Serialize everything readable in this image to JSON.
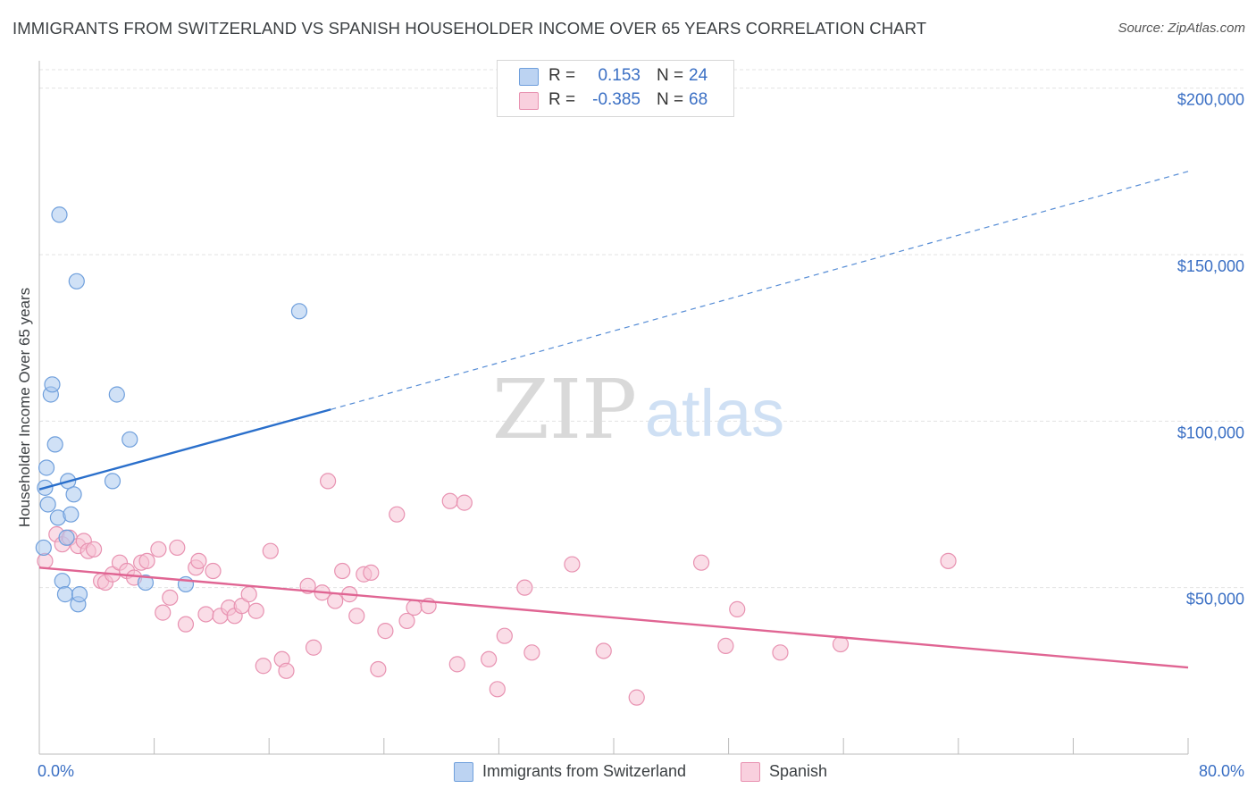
{
  "title": "IMMIGRANTS FROM SWITZERLAND VS SPANISH HOUSEHOLDER INCOME OVER 65 YEARS CORRELATION CHART",
  "source": "Source: ZipAtlas.com",
  "watermark": {
    "zip": "ZIP",
    "atlas": "atlas"
  },
  "colors": {
    "blue_fill": "#a9c8ef",
    "blue_stroke": "#6f9fdc",
    "blue_line": "#2a6fcb",
    "pink_fill": "#f6c1d3",
    "pink_stroke": "#e892b1",
    "pink_line": "#e06593",
    "axis_text": "#3a6fc4",
    "grid": "#e3e3e3"
  },
  "legend": {
    "rows": [
      {
        "r_label": "R =",
        "r_value": "0.153",
        "n_label": "N =",
        "n_value": "24"
      },
      {
        "r_label": "R =",
        "r_value": "-0.385",
        "n_label": "N =",
        "n_value": "68"
      }
    ],
    "bottom": [
      "Immigrants from Switzerland",
      "Spanish"
    ]
  },
  "chart_data": {
    "type": "scatter",
    "title": "IMMIGRANTS FROM SWITZERLAND VS SPANISH HOUSEHOLDER INCOME OVER 65 YEARS CORRELATION CHART",
    "xlabel": "",
    "ylabel": "Householder Income Over 65 years",
    "xlim": [
      0,
      80
    ],
    "ylim": [
      0,
      205000
    ],
    "x_tick_labels": [
      "0.0%",
      "80.0%"
    ],
    "y_ticks": [
      50000,
      100000,
      150000,
      200000
    ],
    "y_tick_labels": [
      "$50,000",
      "$100,000",
      "$150,000",
      "$200,000"
    ],
    "grid": true,
    "legend_position": "top-center",
    "series": [
      {
        "name": "Immigrants from Switzerland",
        "r": 0.153,
        "n": 24,
        "trend": {
          "x0": 0,
          "y0": 79500,
          "x_solid_end": 20.3,
          "y_solid_end": 103500,
          "x1": 80,
          "y1": 175000
        },
        "points": [
          [
            0.3,
            62000
          ],
          [
            0.4,
            80000
          ],
          [
            0.5,
            86000
          ],
          [
            0.6,
            75000
          ],
          [
            0.8,
            108000
          ],
          [
            0.9,
            111000
          ],
          [
            1.1,
            93000
          ],
          [
            1.3,
            71000
          ],
          [
            1.4,
            162000
          ],
          [
            1.6,
            52000
          ],
          [
            1.8,
            48000
          ],
          [
            1.9,
            65000
          ],
          [
            2.0,
            82000
          ],
          [
            2.2,
            72000
          ],
          [
            2.4,
            78000
          ],
          [
            2.6,
            142000
          ],
          [
            2.7,
            45000
          ],
          [
            2.8,
            48000
          ],
          [
            5.1,
            82000
          ],
          [
            5.4,
            108000
          ],
          [
            6.3,
            94500
          ],
          [
            7.4,
            51500
          ],
          [
            10.2,
            51000
          ],
          [
            18.1,
            133000
          ]
        ]
      },
      {
        "name": "Spanish",
        "r": -0.385,
        "n": 68,
        "trend": {
          "x0": 0,
          "y0": 56000,
          "x1": 80,
          "y1": 26000
        },
        "points": [
          [
            0.4,
            58000
          ],
          [
            1.2,
            66000
          ],
          [
            1.6,
            63000
          ],
          [
            2.1,
            65000
          ],
          [
            2.7,
            62500
          ],
          [
            3.1,
            64000
          ],
          [
            3.4,
            61000
          ],
          [
            3.8,
            61500
          ],
          [
            4.3,
            52000
          ],
          [
            4.6,
            51500
          ],
          [
            5.1,
            54000
          ],
          [
            5.6,
            57500
          ],
          [
            6.1,
            55000
          ],
          [
            6.6,
            53000
          ],
          [
            7.1,
            57500
          ],
          [
            7.5,
            58000
          ],
          [
            8.3,
            61500
          ],
          [
            8.6,
            42500
          ],
          [
            9.1,
            47000
          ],
          [
            9.6,
            62000
          ],
          [
            10.2,
            39000
          ],
          [
            10.9,
            56000
          ],
          [
            11.1,
            58000
          ],
          [
            11.6,
            42000
          ],
          [
            12.1,
            55000
          ],
          [
            12.6,
            41500
          ],
          [
            13.2,
            44000
          ],
          [
            13.6,
            41500
          ],
          [
            14.1,
            44500
          ],
          [
            14.6,
            48000
          ],
          [
            15.1,
            43000
          ],
          [
            15.6,
            26500
          ],
          [
            16.1,
            61000
          ],
          [
            16.9,
            28500
          ],
          [
            17.2,
            25000
          ],
          [
            18.7,
            50500
          ],
          [
            19.1,
            32000
          ],
          [
            19.7,
            48500
          ],
          [
            20.1,
            82000
          ],
          [
            20.6,
            46000
          ],
          [
            21.1,
            55000
          ],
          [
            21.6,
            48000
          ],
          [
            22.1,
            41500
          ],
          [
            22.6,
            54000
          ],
          [
            23.1,
            54500
          ],
          [
            23.6,
            25500
          ],
          [
            24.1,
            37000
          ],
          [
            24.9,
            72000
          ],
          [
            25.6,
            40000
          ],
          [
            26.1,
            44000
          ],
          [
            27.1,
            44500
          ],
          [
            28.6,
            76000
          ],
          [
            29.1,
            27000
          ],
          [
            29.6,
            75500
          ],
          [
            31.3,
            28500
          ],
          [
            31.9,
            19500
          ],
          [
            32.4,
            35500
          ],
          [
            33.8,
            50000
          ],
          [
            34.3,
            30500
          ],
          [
            37.1,
            57000
          ],
          [
            39.3,
            31000
          ],
          [
            41.6,
            17000
          ],
          [
            46.1,
            57500
          ],
          [
            47.8,
            32500
          ],
          [
            48.6,
            43500
          ],
          [
            51.6,
            30500
          ],
          [
            55.8,
            33000
          ],
          [
            63.3,
            58000
          ]
        ]
      }
    ]
  }
}
